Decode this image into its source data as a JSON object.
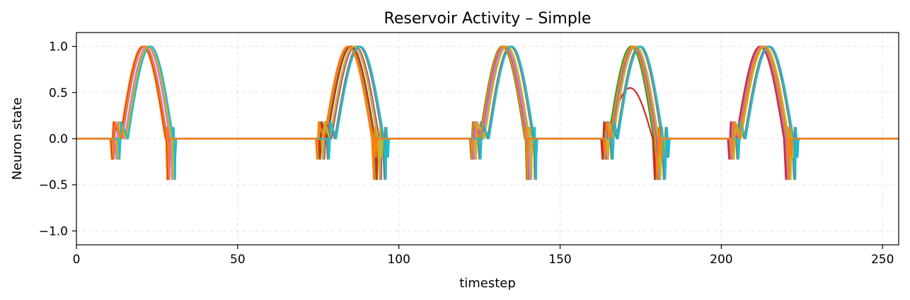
{
  "chart_data": {
    "type": "line",
    "title": "Reservoir Activity – Simple",
    "xlabel": "timestep",
    "ylabel": "Neuron state",
    "xlim": [
      0,
      255
    ],
    "ylim": [
      -1.15,
      1.15
    ],
    "xticks": [
      0,
      50,
      100,
      150,
      200,
      250
    ],
    "xtick_labels": [
      "0",
      "50",
      "100",
      "150",
      "200",
      "250"
    ],
    "yticks": [
      -1.0,
      -0.5,
      0.0,
      0.5,
      1.0
    ],
    "ytick_labels": [
      "−1.0",
      "−0.5",
      "0.0",
      "0.5",
      "1.0"
    ],
    "grid": true,
    "bursts": [
      {
        "start": 12,
        "end": 30,
        "peak": 22
      },
      {
        "start": 76,
        "end": 95,
        "peak": 86
      },
      {
        "start": 123,
        "end": 141,
        "peak": 133
      },
      {
        "start": 164,
        "end": 182,
        "peak": 173
      },
      {
        "start": 203,
        "end": 222,
        "peak": 213
      }
    ],
    "series": [
      {
        "color": "#1f77b4",
        "offsets": [
          0.0,
          0.0,
          0.0,
          0.0,
          0.0
        ],
        "amps": [
          1.0,
          1.0,
          1.0,
          1.0,
          1.0
        ]
      },
      {
        "color": "#ff7f0e",
        "offsets": [
          -1.5,
          -1.5,
          -0.5,
          0.0,
          0.5
        ],
        "amps": [
          1.0,
          1.0,
          1.0,
          1.0,
          1.0
        ]
      },
      {
        "color": "#2ca02c",
        "offsets": [
          -1.0,
          -1.0,
          -1.0,
          -1.0,
          -0.5
        ],
        "amps": [
          1.0,
          1.0,
          1.0,
          1.0,
          1.0
        ]
      },
      {
        "color": "#d62728",
        "offsets": [
          -1.2,
          -0.8,
          0.0,
          -1.3,
          -1.0
        ],
        "amps": [
          1.0,
          1.0,
          1.0,
          0.55,
          1.0
        ]
      },
      {
        "color": "#9467bd",
        "offsets": [
          -0.8,
          0.0,
          -0.5,
          -0.2,
          -0.5
        ],
        "amps": [
          1.0,
          1.0,
          1.0,
          1.0,
          1.0
        ]
      },
      {
        "color": "#8c564b",
        "offsets": [
          0.5,
          0.5,
          0.5,
          0.5,
          0.5
        ],
        "amps": [
          1.0,
          1.0,
          1.0,
          1.0,
          1.0
        ]
      },
      {
        "color": "#e377c2",
        "offsets": [
          0.0,
          0.2,
          0.0,
          0.3,
          -0.2
        ],
        "amps": [
          1.0,
          1.0,
          1.0,
          1.0,
          1.0
        ]
      },
      {
        "color": "#7f7f7f",
        "offsets": [
          1.0,
          1.5,
          1.5,
          1.5,
          1.5
        ],
        "amps": [
          1.0,
          1.0,
          1.0,
          1.0,
          1.0
        ]
      },
      {
        "color": "#bcbd22",
        "offsets": [
          0.5,
          0.0,
          0.5,
          0.5,
          0.5
        ],
        "amps": [
          1.0,
          1.0,
          1.0,
          1.0,
          1.0
        ]
      },
      {
        "color": "#17becf",
        "offsets": [
          1.0,
          2.0,
          2.0,
          2.0,
          2.0
        ],
        "amps": [
          1.0,
          1.0,
          1.0,
          1.0,
          1.0
        ]
      },
      {
        "color": "#ff7f0e",
        "offsets": [
          -1.0,
          -1.8,
          -0.8,
          -0.5,
          0.0
        ],
        "amps": [
          1.0,
          1.0,
          1.0,
          1.0,
          1.0
        ]
      }
    ]
  }
}
